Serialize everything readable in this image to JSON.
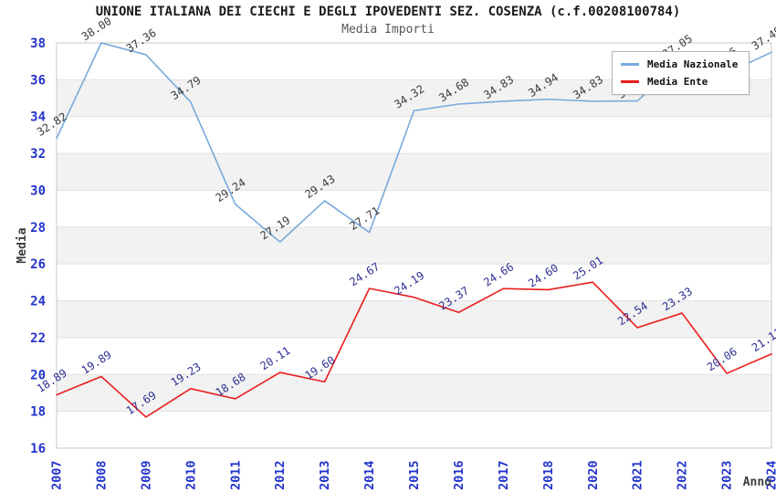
{
  "header": {
    "title": "UNIONE ITALIANA DEI CIECHI E DEGLI IPOVEDENTI SEZ. COSENZA (c.f.00208100784)",
    "subtitle": "Media Importi"
  },
  "legend": {
    "items": [
      {
        "label": "Media Nazionale",
        "color": "#78aadc"
      },
      {
        "label": "Media Ente",
        "color": "#ea1e1e"
      }
    ]
  },
  "chart_data": {
    "type": "line",
    "title": "UNIONE ITALIANA DEI CIECHI E DEGLI IPOVEDENTI SEZ. COSENZA (c.f.00208100784)",
    "subtitle": "Media Importi",
    "xlabel": "Anno",
    "ylabel": "Media",
    "categories": [
      "2007",
      "2008",
      "2009",
      "2010",
      "2011",
      "2012",
      "2013",
      "2014",
      "2015",
      "2016",
      "2017",
      "2018",
      "2020",
      "2021",
      "2022",
      "2023",
      "2024"
    ],
    "series": [
      {
        "name": "Media Nazionale",
        "color": "#78aadc",
        "label_color": "#3a3a3a",
        "values": [
          32.82,
          38.0,
          37.36,
          34.79,
          29.24,
          27.19,
          29.43,
          27.71,
          34.32,
          34.68,
          34.83,
          34.94,
          34.83,
          34.85,
          37.05,
          36.36,
          37.49
        ]
      },
      {
        "name": "Media Ente",
        "color": "#ea1e1e",
        "label_color": "#2e2e96",
        "values": [
          18.89,
          19.89,
          17.69,
          19.23,
          18.68,
          20.11,
          19.6,
          24.67,
          24.19,
          23.37,
          24.66,
          24.6,
          25.01,
          22.54,
          23.33,
          20.06,
          21.11
        ]
      }
    ],
    "ylim": [
      16,
      38
    ],
    "ytick_step": 2,
    "y_ticks": [
      38,
      36,
      34,
      32,
      30,
      28,
      26,
      24,
      22,
      20,
      18,
      16
    ],
    "grid": "horizontal-alternating-bands",
    "legend_position": "top-right",
    "colors": {
      "band": "#f2f2f2",
      "gridline": "#e2e2e2",
      "border": "#c8c8c8",
      "tick": "#2233cc",
      "axis_label": "#3c3c3c",
      "title": "#1a1a1a",
      "subtitle": "#555555"
    }
  }
}
